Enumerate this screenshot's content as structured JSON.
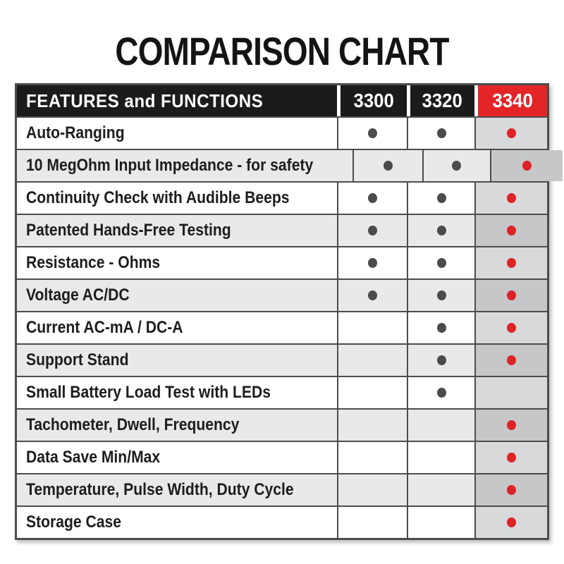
{
  "title": "COMPARISON CHART",
  "table": {
    "feature_header": "FEATURES and FUNCTIONS",
    "products": [
      "3300",
      "3320",
      "3340"
    ],
    "highlight_product": "3340",
    "rows": [
      {
        "feature": "Auto-Ranging",
        "values": [
          true,
          true,
          true
        ]
      },
      {
        "feature": "10 MegOhm Input Impedance - for safety",
        "values": [
          true,
          true,
          true
        ]
      },
      {
        "feature": "Continuity Check with Audible Beeps",
        "values": [
          true,
          true,
          true
        ]
      },
      {
        "feature": "Patented Hands-Free Testing",
        "values": [
          true,
          true,
          true
        ]
      },
      {
        "feature": "Resistance - Ohms",
        "values": [
          true,
          true,
          true
        ]
      },
      {
        "feature": "Voltage AC/DC",
        "values": [
          true,
          true,
          true
        ]
      },
      {
        "feature": "Current AC-mA / DC-A",
        "values": [
          false,
          true,
          true
        ]
      },
      {
        "feature": "Support Stand",
        "values": [
          false,
          true,
          true
        ]
      },
      {
        "feature": "Small Battery Load Test with LEDs",
        "values": [
          false,
          true,
          false
        ]
      },
      {
        "feature": "Tachometer, Dwell, Frequency",
        "values": [
          false,
          false,
          true
        ]
      },
      {
        "feature": "Data Save Min/Max",
        "values": [
          false,
          false,
          true
        ]
      },
      {
        "feature": "Temperature, Pulse Width, Duty Cycle",
        "values": [
          false,
          false,
          true
        ]
      },
      {
        "feature": "Storage Case",
        "values": [
          false,
          false,
          true
        ]
      }
    ],
    "colors": {
      "header_bg": "#1d1a1b",
      "highlight_bg": "#e42528",
      "row_alt_bg": "#e8e9ea",
      "highlight_col_light": "#d8d9da",
      "highlight_col_dark": "#c6c7c9",
      "dot_dark": "#4a4b4d",
      "dot_red": "#de2327",
      "border": "#4b4c4e"
    }
  },
  "chart_data": {
    "type": "table",
    "title": "COMPARISON CHART",
    "columns": [
      "FEATURES and FUNCTIONS",
      "3300",
      "3320",
      "3340"
    ],
    "rows": [
      [
        "Auto-Ranging",
        true,
        true,
        true
      ],
      [
        "10 MegOhm Input Impedance - for safety",
        true,
        true,
        true
      ],
      [
        "Continuity Check with Audible Beeps",
        true,
        true,
        true
      ],
      [
        "Patented Hands-Free Testing",
        true,
        true,
        true
      ],
      [
        "Resistance - Ohms",
        true,
        true,
        true
      ],
      [
        "Voltage AC/DC",
        true,
        true,
        true
      ],
      [
        "Current AC-mA / DC-A",
        false,
        true,
        true
      ],
      [
        "Support Stand",
        false,
        true,
        true
      ],
      [
        "Small Battery Load Test with LEDs",
        false,
        true,
        false
      ],
      [
        "Tachometer, Dwell, Frequency",
        false,
        false,
        true
      ],
      [
        "Data Save Min/Max",
        false,
        false,
        true
      ],
      [
        "Temperature, Pulse Width, Duty Cycle",
        false,
        false,
        true
      ],
      [
        "Storage Case",
        false,
        false,
        true
      ]
    ],
    "legend": "dot = feature present; red column 3340 is the highlighted model"
  }
}
